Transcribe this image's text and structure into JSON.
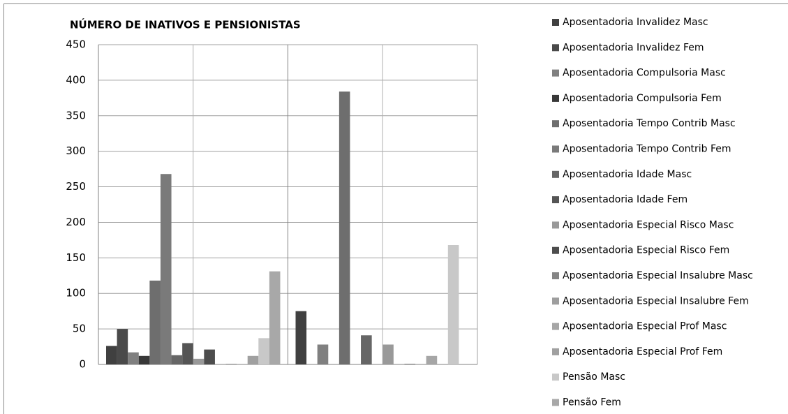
{
  "chart_data": {
    "type": "bar",
    "title": "NÚMERO DE INATIVOS E PENSIONISTAS",
    "categories": [
      null,
      null
    ],
    "series": [
      {
        "name": "Aposentadoria Invalidez Masc",
        "color": "#404040",
        "values": [
          26,
          75
        ]
      },
      {
        "name": "Aposentadoria Invalidez Fem",
        "color": "#4a4a4a",
        "values": [
          50,
          0
        ]
      },
      {
        "name": "Aposentadoria Compulsoria Masc",
        "color": "#808080",
        "values": [
          17,
          28
        ]
      },
      {
        "name": "Aposentadoria Compulsoria Fem",
        "color": "#383838",
        "values": [
          12,
          0
        ]
      },
      {
        "name": "Aposentadoria Tempo Contrib Masc",
        "color": "#6e6e6e",
        "values": [
          118,
          384
        ]
      },
      {
        "name": "Aposentadoria Tempo Contrib Fem",
        "color": "#7a7a7a",
        "values": [
          268,
          0
        ]
      },
      {
        "name": "Aposentadoria Idade Masc",
        "color": "#666666",
        "values": [
          13,
          41
        ]
      },
      {
        "name": "Aposentadoria Idade Fem",
        "color": "#555555",
        "values": [
          30,
          0
        ]
      },
      {
        "name": "Aposentadoria Especial Risco Masc",
        "color": "#999999",
        "values": [
          8,
          28
        ]
      },
      {
        "name": "Aposentadoria Especial Risco Fem",
        "color": "#4d4d4d",
        "values": [
          21,
          0
        ]
      },
      {
        "name": "Aposentadoria Especial Insalubre Masc",
        "color": "#858585",
        "values": [
          0,
          1
        ]
      },
      {
        "name": "Aposentadoria Especial Insalubre Fem",
        "color": "#9e9e9e",
        "values": [
          1,
          0
        ]
      },
      {
        "name": "Aposentadoria Especial Prof Masc",
        "color": "#a6a6a6",
        "values": [
          0,
          12
        ]
      },
      {
        "name": "Aposentadoria Especial Prof Fem",
        "color": "#a0a0a0",
        "values": [
          12,
          0
        ]
      },
      {
        "name": "Pensão Masc",
        "color": "#c8c8c8",
        "values": [
          37,
          168
        ]
      },
      {
        "name": "Pensão Fem",
        "color": "#a8a8a8",
        "values": [
          131,
          0
        ]
      }
    ],
    "ylim": [
      0,
      450
    ],
    "yticks": [
      0,
      50,
      100,
      150,
      200,
      250,
      300,
      350,
      400,
      450
    ],
    "grid": true
  }
}
